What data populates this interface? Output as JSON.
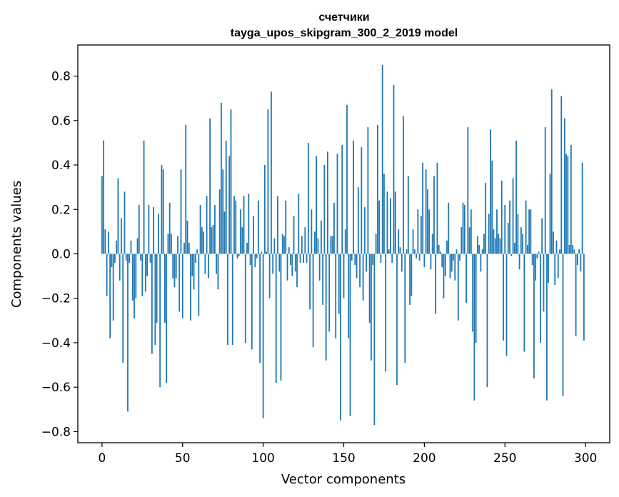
{
  "chart_data": {
    "type": "bar",
    "title": "счетчики",
    "subtitle": "tayga_upos_skipgram_300_2_2019 model",
    "xlabel": "Vector components",
    "ylabel": "Components values",
    "xlim": [
      -15,
      315
    ],
    "ylim": [
      -0.85,
      0.94
    ],
    "xticks": [
      0,
      50,
      100,
      150,
      200,
      250,
      300
    ],
    "xtick_labels": [
      "0",
      "50",
      "100",
      "150",
      "200",
      "250",
      "300"
    ],
    "yticks": [
      -0.8,
      -0.6,
      -0.4,
      -0.2,
      0.0,
      0.2,
      0.4,
      0.6,
      0.8
    ],
    "ytick_labels": [
      "−0.8",
      "−0.6",
      "−0.4",
      "−0.2",
      "0.0",
      "0.2",
      "0.4",
      "0.6",
      "0.8"
    ],
    "grid": false,
    "bar_color": "#1f77b4",
    "values": [
      0.35,
      0.51,
      0.11,
      -0.19,
      0.1,
      -0.38,
      -0.06,
      -0.3,
      -0.04,
      0.06,
      0.34,
      -0.12,
      0.16,
      -0.49,
      0.28,
      -0.03,
      -0.71,
      -0.04,
      0.06,
      -0.21,
      -0.29,
      -0.2,
      0.07,
      0.22,
      -0.03,
      -0.19,
      0.51,
      -0.17,
      -0.1,
      0.22,
      -0.04,
      -0.45,
      0.21,
      -0.41,
      -0.31,
      0.18,
      -0.6,
      0.4,
      0.38,
      -0.31,
      -0.58,
      0.09,
      0.23,
      0.09,
      -0.11,
      -0.15,
      -0.11,
      0.08,
      -0.26,
      0.38,
      -0.29,
      0.05,
      0.58,
      0.15,
      0.05,
      -0.3,
      -0.1,
      -0.16,
      -0.04,
      0.02,
      -0.28,
      0.22,
      0.12,
      0.1,
      -0.09,
      0.26,
      -0.11,
      0.61,
      0.12,
      0.13,
      0.22,
      -0.09,
      -0.16,
      0.29,
      0.68,
      0.38,
      0.19,
      0.51,
      -0.41,
      0.44,
      0.65,
      -0.41,
      0.26,
      0.24,
      -0.02,
      -0.01,
      0.2,
      0.12,
      0.26,
      -0.4,
      0.05,
      0.27,
      -0.05,
      -0.43,
      0.17,
      -0.06,
      -0.02,
      0.24,
      -0.49,
      0.01,
      -0.74,
      0.4,
      0.01,
      0.65,
      -0.2,
      0.73,
      -0.09,
      0.07,
      -0.58,
      0.26,
      -0.08,
      -0.57,
      0.09,
      0.08,
      0.24,
      -0.12,
      0.03,
      -0.05,
      -0.1,
      0.17,
      -0.08,
      -0.15,
      0.27,
      -0.04,
      0.08,
      -0.04,
      0.12,
      -0.04,
      0.5,
      -0.25,
      0.2,
      -0.42,
      0.1,
      0.44,
      0.07,
      -0.12,
      0.15,
      -0.23,
      0.4,
      -0.48,
      0.46,
      -0.35,
      0.08,
      0.08,
      0.23,
      -0.38,
      0.45,
      -0.27,
      -0.75,
      0.49,
      -0.2,
      0.11,
      0.67,
      -0.38,
      -0.73,
      -0.03,
      0.51,
      -0.05,
      -0.11,
      0.3,
      -0.15,
      0.48,
      -0.21,
      0.21,
      -0.08,
      0.57,
      -0.31,
      -0.48,
      -0.05,
      -0.77,
      0.09,
      0.58,
      0.24,
      -0.04,
      0.85,
      0.36,
      -0.53,
      0.28,
      0.02,
      0.25,
      -0.04,
      0.76,
      0.28,
      -0.59,
      0.11,
      0.03,
      -0.08,
      0.62,
      -0.49,
      0.02,
      0.35,
      -0.23,
      -0.19,
      0.11,
      0.02,
      -0.02,
      0.2,
      -0.03,
      0.17,
      0.41,
      -0.06,
      0.38,
      0.29,
      0.2,
      -0.07,
      0.09,
      0.35,
      -0.27,
      0.41,
      0.04,
      0.01,
      -0.06,
      -0.2,
      -0.1,
      0.06,
      0.23,
      -0.11,
      -0.08,
      -0.03,
      -0.12,
      0.02,
      -0.3,
      -0.03,
      0.12,
      0.23,
      0.22,
      -0.22,
      0.57,
      0.12,
      0.2,
      -0.35,
      -0.66,
      -0.4,
      0.08,
      0.04,
      -0.08,
      0.02,
      0.09,
      0.32,
      -0.6,
      0.18,
      0.56,
      0.42,
      0.11,
      0.07,
      0.2,
      0.09,
      0.07,
      0.33,
      -0.39,
      0.22,
      -0.46,
      0.14,
      0.24,
      -0.01,
      0.34,
      0.05,
      0.51,
      0.18,
      -0.07,
      0.12,
      0.09,
      -0.44,
      0.24,
      0.04,
      0.2,
      0.2,
      -0.05,
      -0.56,
      -0.12,
      -0.02,
      0.01,
      -0.4,
      0.16,
      -0.26,
      0.57,
      -0.66,
      -0.13,
      0.36,
      0.74,
      0.1,
      -0.14,
      0.06,
      -0.11,
      0.02,
      0.71,
      -0.64,
      0.61,
      0.45,
      0.44,
      0.04,
      0.49,
      0.04,
      0.02,
      -0.37,
      -0.05,
      0.02,
      -0.08,
      0.41,
      -0.39
    ]
  }
}
